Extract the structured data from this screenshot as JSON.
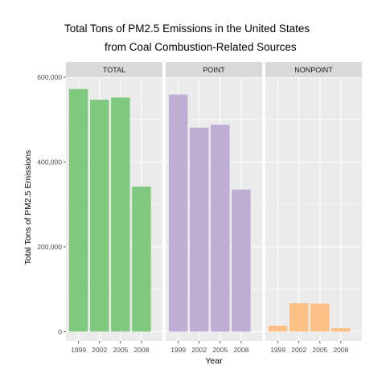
{
  "chart_data": {
    "type": "bar",
    "title_lines": [
      "Total Tons of PM2.5 Emissions in the United States",
      "from Coal Combustion-Related Sources"
    ],
    "xlabel": "Year",
    "ylabel": "Total Tons of PM2.5 Emissions",
    "categories": [
      "1999",
      "2002",
      "2005",
      "2008"
    ],
    "ylim": [
      -22000,
      600000
    ],
    "yticks": [
      0,
      200000,
      400000,
      600000
    ],
    "ytick_labels": [
      "0",
      "200,000",
      "400,000",
      "600,000"
    ],
    "grid": true,
    "panels": [
      {
        "label": "TOTAL",
        "color": "#7fc97f",
        "values": [
          572000,
          547000,
          552000,
          342000
        ]
      },
      {
        "label": "POINT",
        "color": "#beaed4",
        "values": [
          559000,
          481000,
          488000,
          335000
        ]
      },
      {
        "label": "NONPOINT",
        "color": "#fdc086",
        "values": [
          14000,
          67000,
          66000,
          8000
        ]
      }
    ]
  }
}
